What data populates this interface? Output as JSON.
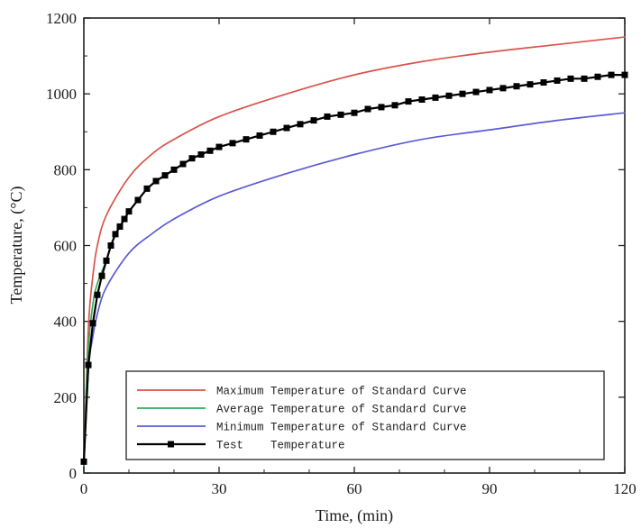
{
  "chart_data": {
    "type": "line",
    "xlabel": "Time, (min)",
    "ylabel": "Temperature, (°C)",
    "xlim": [
      0,
      120
    ],
    "ylim": [
      0,
      1200
    ],
    "x_ticks": [
      "0",
      "30",
      "60",
      "90",
      "120"
    ],
    "y_ticks": [
      "0",
      "200",
      "400",
      "600",
      "800",
      "1000",
      "1200"
    ],
    "grid": false,
    "legend_position": "bottom-right",
    "series": [
      {
        "name": "Maximum Temperature of Standard Curve",
        "color": "#d9534a",
        "marker": "none",
        "x": [
          0,
          1,
          2,
          3,
          5,
          10,
          15,
          20,
          30,
          45,
          60,
          75,
          90,
          105,
          120
        ],
        "y": [
          20,
          380,
          520,
          600,
          680,
          780,
          840,
          880,
          940,
          1000,
          1050,
          1085,
          1110,
          1130,
          1150
        ]
      },
      {
        "name": "Average Temperature of Standard Curve",
        "color": "#2fae5a",
        "marker": "none",
        "x": [
          0,
          0.5,
          1,
          2,
          3,
          5
        ],
        "y": [
          20,
          200,
          330,
          445,
          500,
          560
        ]
      },
      {
        "name": "Minimum Temperature of Standard Curve",
        "color": "#5b5bd6",
        "marker": "none",
        "x": [
          0,
          1,
          2,
          3,
          5,
          10,
          15,
          20,
          30,
          45,
          60,
          75,
          90,
          105,
          120
        ],
        "y": [
          20,
          270,
          360,
          420,
          490,
          580,
          630,
          670,
          730,
          790,
          840,
          880,
          905,
          930,
          950
        ]
      },
      {
        "name": "Test    Temperature",
        "color": "#000000",
        "marker": "square",
        "x": [
          0,
          1,
          2,
          3,
          4,
          5,
          6,
          7,
          8,
          9,
          10,
          12,
          14,
          16,
          18,
          20,
          22,
          24,
          26,
          28,
          30,
          33,
          36,
          39,
          42,
          45,
          48,
          51,
          54,
          57,
          60,
          63,
          66,
          69,
          72,
          75,
          78,
          81,
          84,
          87,
          90,
          93,
          96,
          99,
          102,
          105,
          108,
          111,
          114,
          117,
          120
        ],
        "y": [
          30,
          285,
          395,
          470,
          520,
          560,
          600,
          630,
          650,
          670,
          690,
          720,
          750,
          770,
          785,
          800,
          815,
          830,
          840,
          850,
          860,
          870,
          880,
          890,
          900,
          910,
          920,
          930,
          940,
          945,
          950,
          960,
          965,
          970,
          980,
          985,
          990,
          995,
          1000,
          1005,
          1010,
          1015,
          1020,
          1025,
          1030,
          1035,
          1040,
          1040,
          1045,
          1050,
          1050
        ]
      }
    ]
  }
}
